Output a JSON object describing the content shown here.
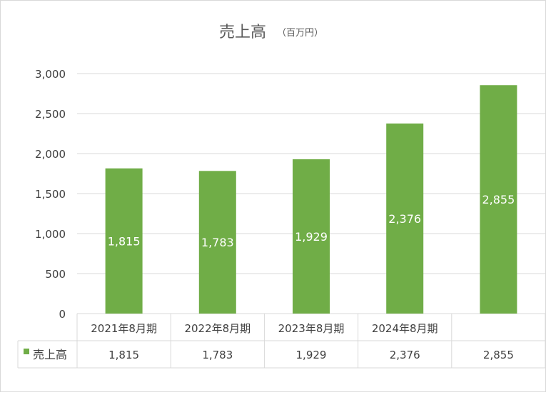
{
  "chart_data": {
    "type": "bar",
    "title": "売上高",
    "title_unit": "（百万円）",
    "categories": [
      "2021年8月期",
      "2022年8月期",
      "2023年8月期",
      "2024年8月期",
      ""
    ],
    "series": [
      {
        "name": "売上高",
        "values": [
          1815,
          1783,
          1929,
          2376,
          2855
        ]
      }
    ],
    "value_labels": [
      "1,815",
      "1,783",
      "1,929",
      "2,376",
      "2,855"
    ],
    "y_ticks": [
      "0",
      "500",
      "1,000",
      "1,500",
      "2,000",
      "2,500",
      "3,000"
    ],
    "ylim": [
      0,
      3000
    ],
    "grid": true,
    "data_table": true,
    "legend": "data-table",
    "colors": {
      "bar": "#70ad47",
      "grid": "#d9d9d9",
      "text": "#404040",
      "title": "#595959",
      "label": "#ffffff"
    }
  }
}
